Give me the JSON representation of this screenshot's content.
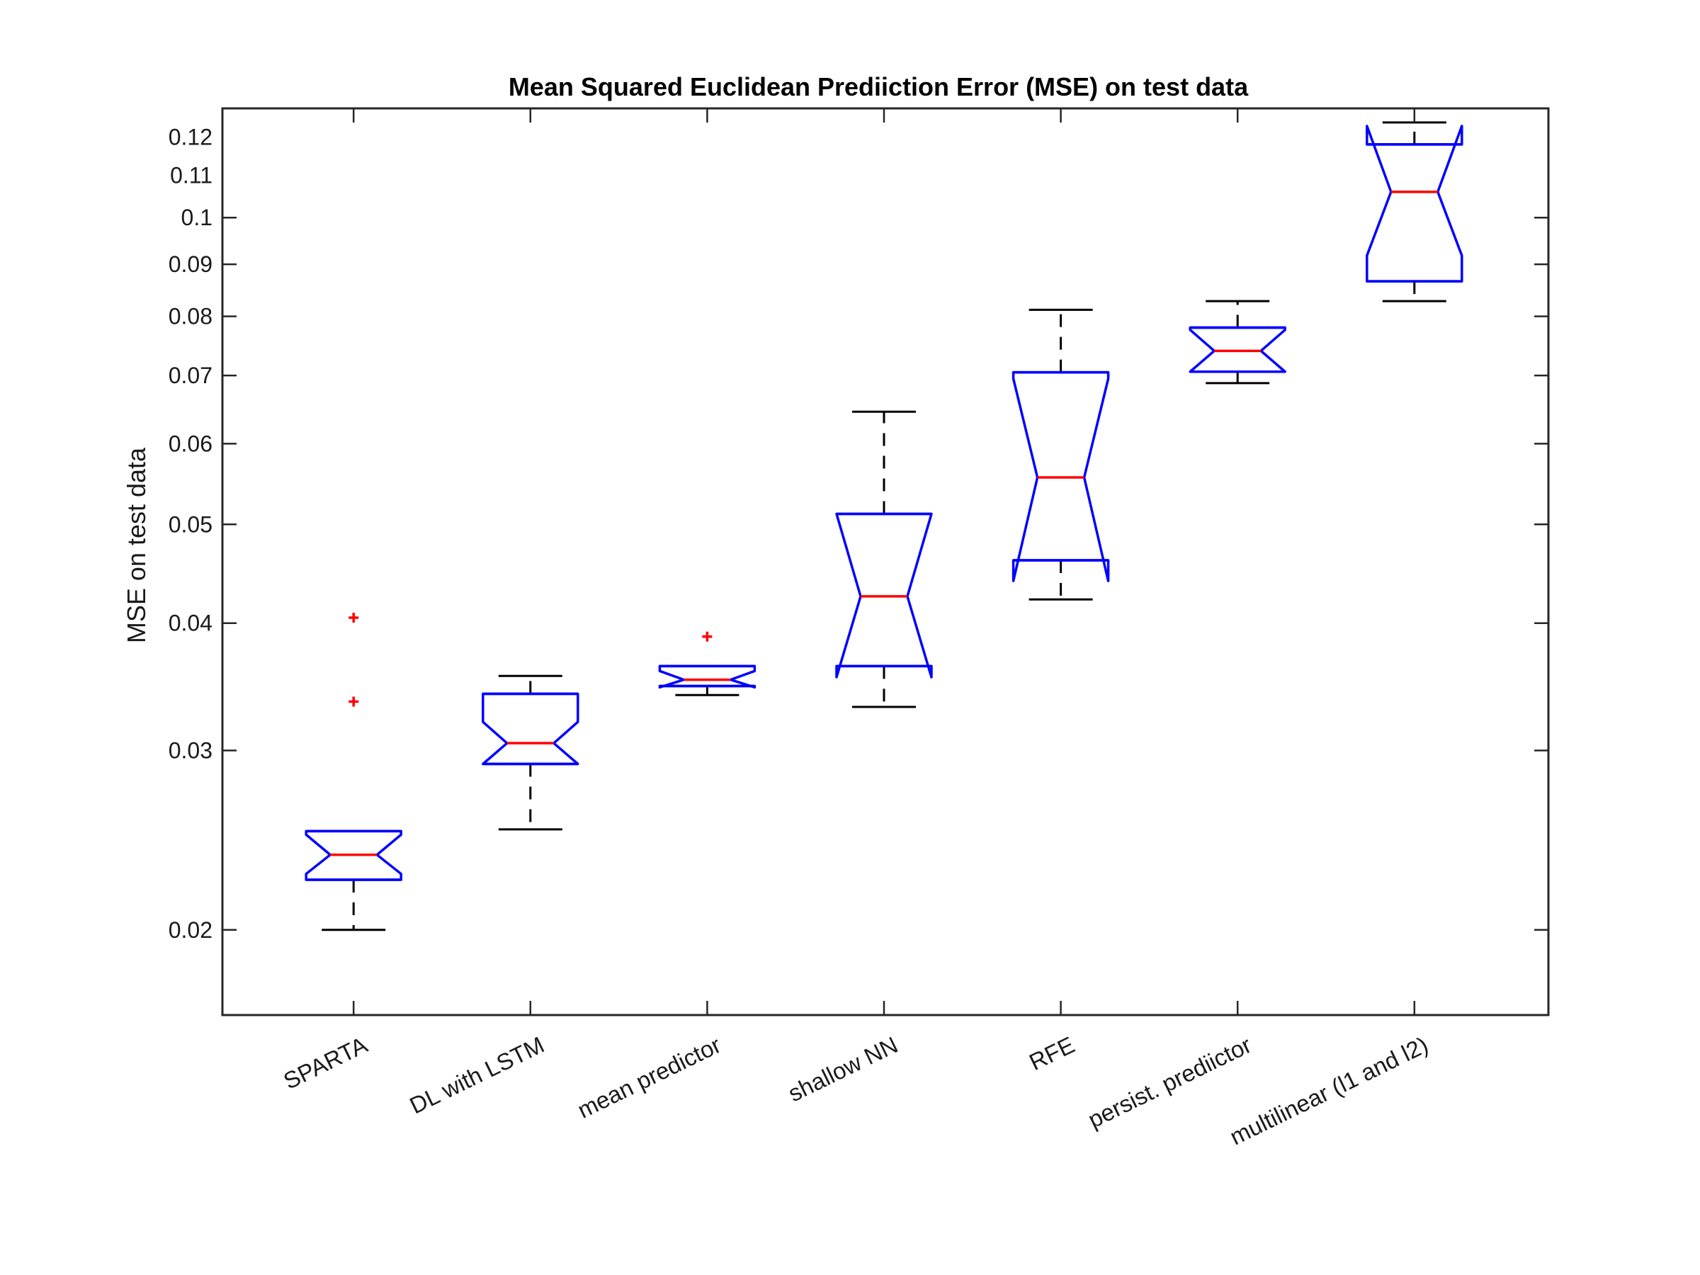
{
  "chart_data": {
    "type": "boxplot",
    "title": "Mean Squared Euclidean Prediiction Error (MSE) on test data",
    "ylabel": "MSE on test data",
    "xlabel": "",
    "yscale": "log",
    "ylim": [
      0.0165,
      0.128
    ],
    "yticks": [
      "0.02",
      "0.03",
      "0.04",
      "0.05",
      "0.06",
      "0.07",
      "0.08",
      "0.09",
      "0.1",
      "0.11",
      "0.12"
    ],
    "ytick_values": [
      0.02,
      0.03,
      0.04,
      0.05,
      0.06,
      0.07,
      0.08,
      0.09,
      0.1,
      0.11,
      0.12
    ],
    "notched": true,
    "categories": [
      "SPARTA",
      "DL with LSTM",
      "mean predictor",
      "shallow NN",
      "RFE",
      "persist. prediictor",
      "multilinear (l1 and l2)"
    ],
    "boxes": [
      {
        "whisker_low": 0.02,
        "q1": 0.0224,
        "notch_low": 0.0227,
        "median": 0.0237,
        "notch_high": 0.0248,
        "q3": 0.025,
        "whisker_high": 0.025,
        "outliers": [
          0.0335,
          0.0405
        ]
      },
      {
        "whisker_low": 0.0251,
        "q1": 0.0291,
        "notch_low": 0.0291,
        "median": 0.0305,
        "notch_high": 0.032,
        "q3": 0.0341,
        "whisker_high": 0.0355,
        "outliers": []
      },
      {
        "whisker_low": 0.034,
        "q1": 0.0347,
        "notch_low": 0.0346,
        "median": 0.0352,
        "notch_high": 0.0359,
        "q3": 0.0363,
        "whisker_high": 0.0363,
        "outliers": [
          0.0388
        ]
      },
      {
        "whisker_low": 0.0331,
        "q1": 0.0363,
        "notch_low": 0.0354,
        "median": 0.0425,
        "notch_high": 0.0512,
        "q3": 0.0512,
        "whisker_high": 0.0645,
        "outliers": []
      },
      {
        "whisker_low": 0.0422,
        "q1": 0.0461,
        "notch_low": 0.044,
        "median": 0.0556,
        "notch_high": 0.0695,
        "q3": 0.0705,
        "whisker_high": 0.0812,
        "outliers": []
      },
      {
        "whisker_low": 0.0688,
        "q1": 0.0706,
        "notch_low": 0.0706,
        "median": 0.074,
        "notch_high": 0.0776,
        "q3": 0.078,
        "whisker_high": 0.0828,
        "outliers": []
      },
      {
        "whisker_low": 0.0828,
        "q1": 0.0866,
        "notch_low": 0.0918,
        "median": 0.106,
        "notch_high": 0.123,
        "q3": 0.118,
        "whisker_high": 0.124,
        "outliers": []
      }
    ],
    "colors": {
      "box": "#0000ff",
      "median": "#ff0000",
      "whisker": "#000000",
      "outlier": "#ff0000"
    },
    "grid": false,
    "legend": "none"
  }
}
